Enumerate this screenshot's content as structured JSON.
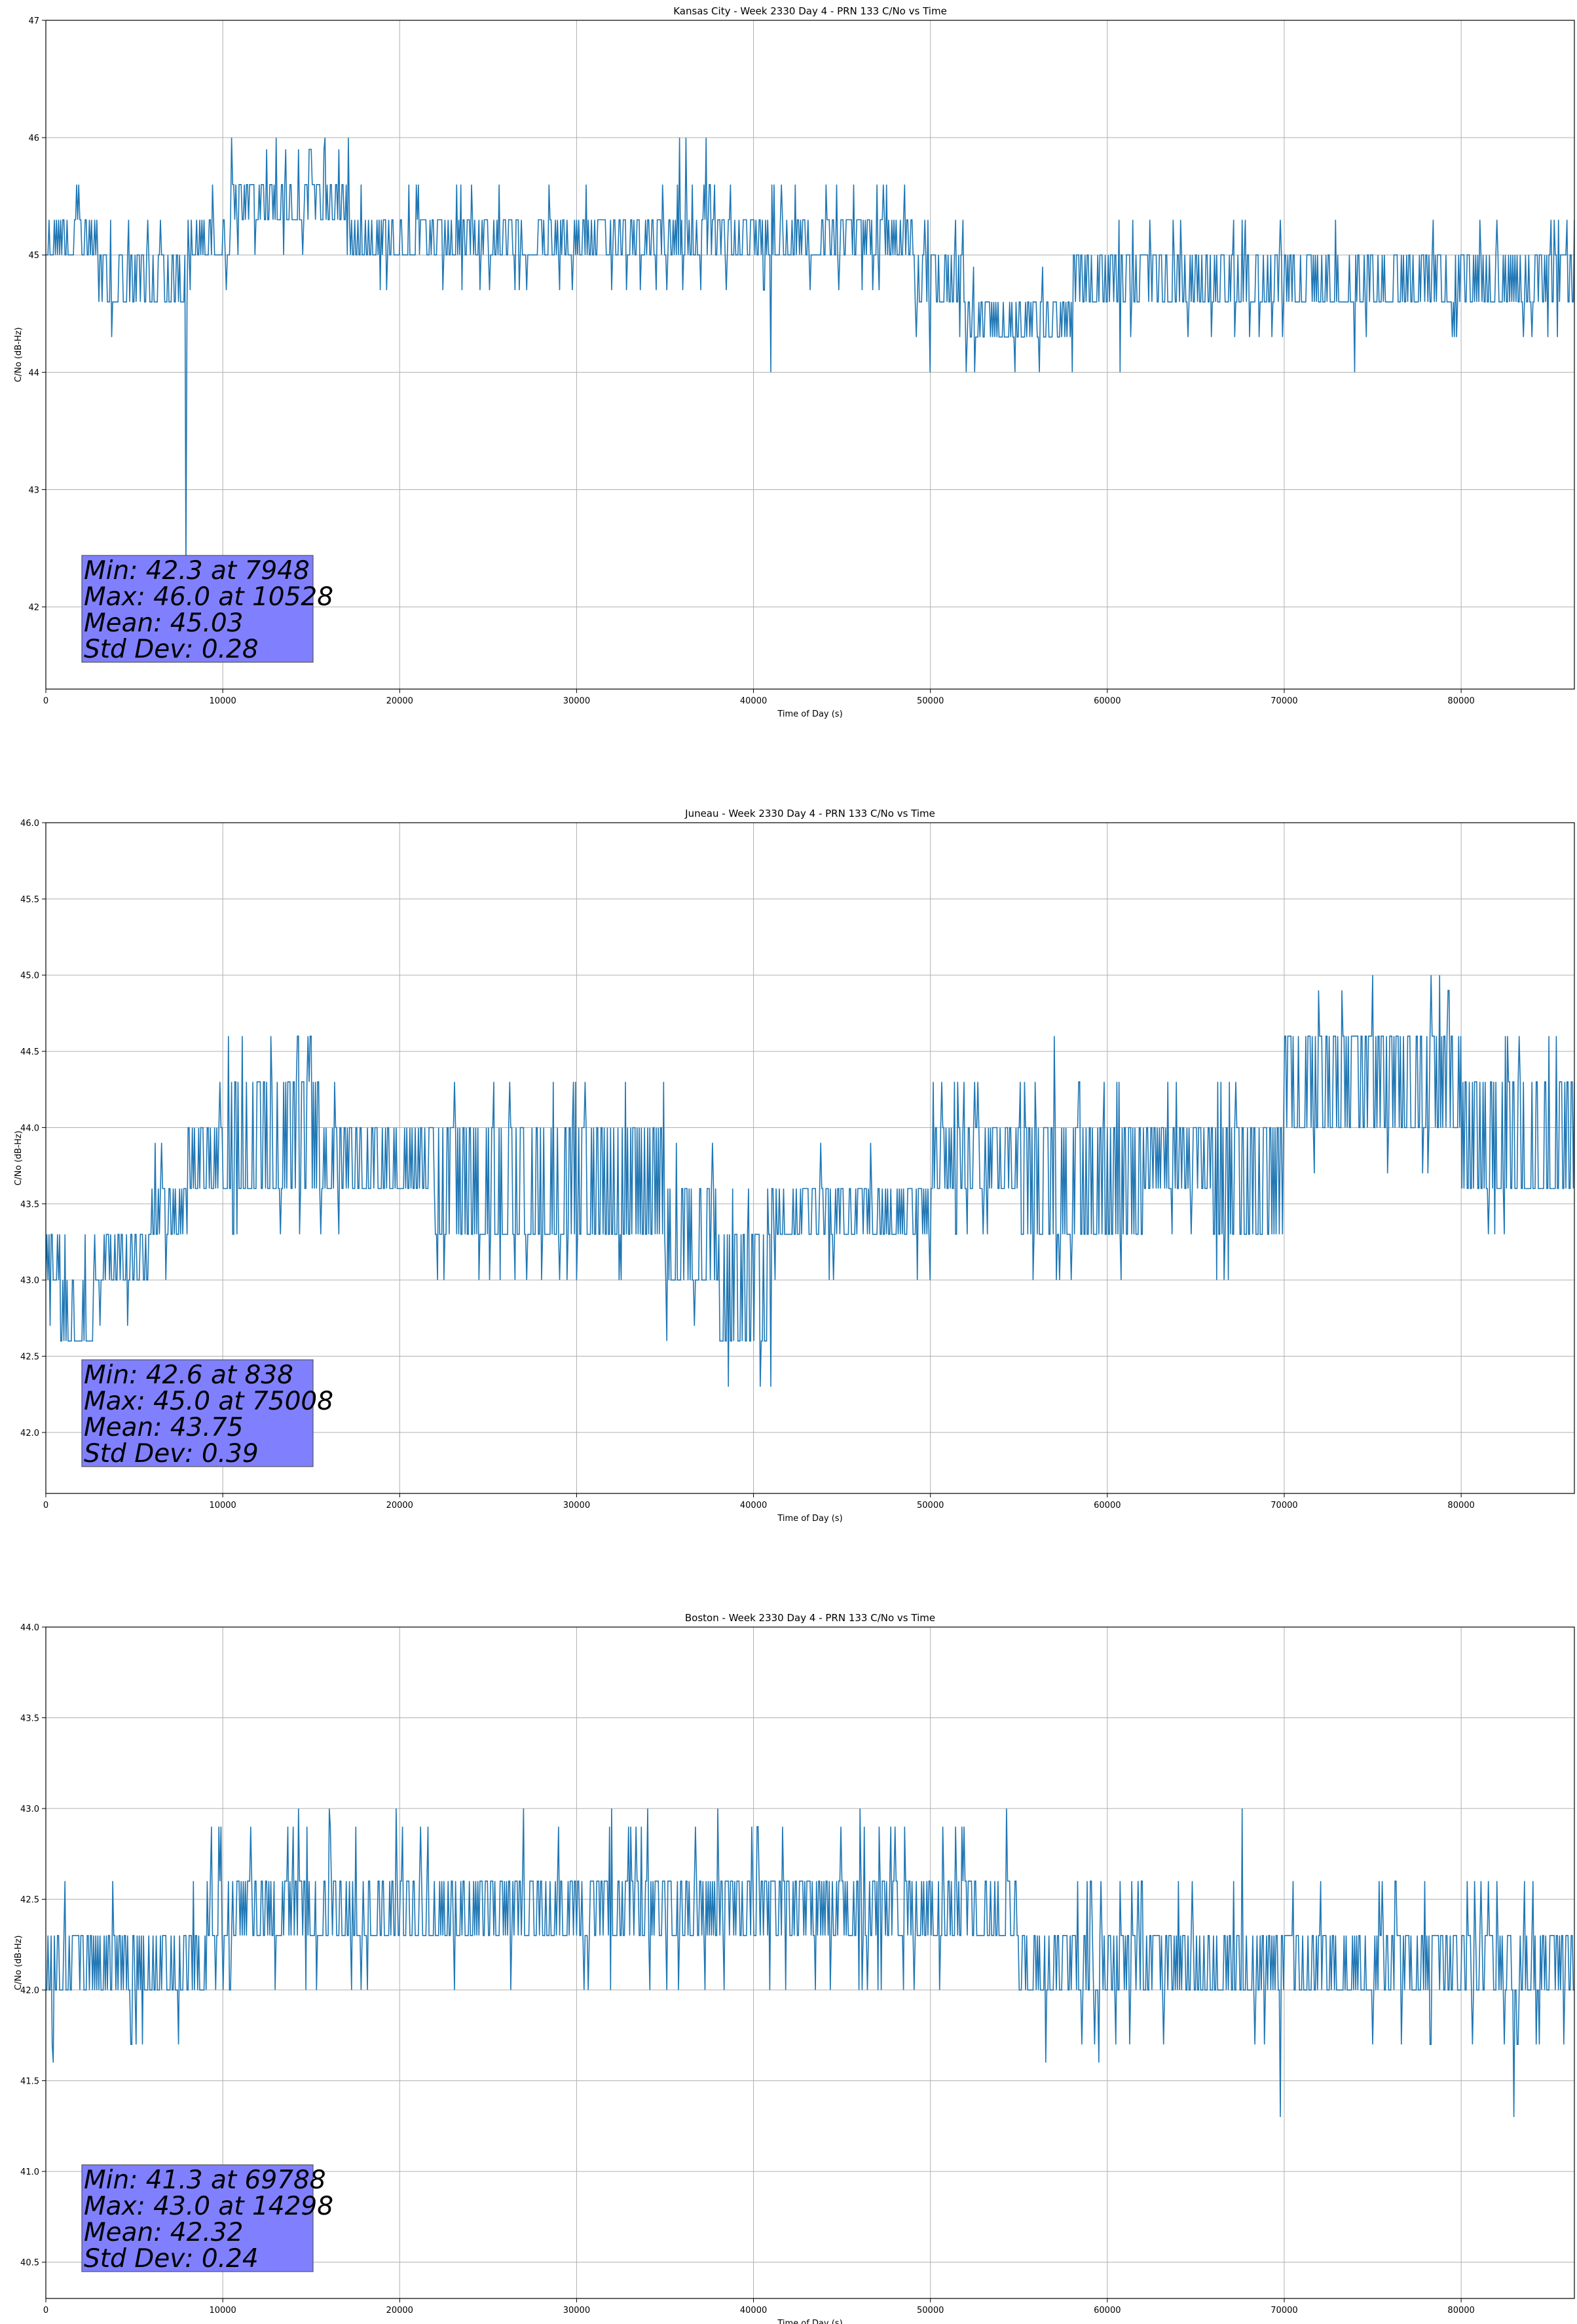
{
  "colors": {
    "series": "#1f77b4",
    "stats_box": "#8080ff",
    "grid": "#b0b0b0"
  },
  "chart_data": [
    {
      "type": "line",
      "title": "Kansas City - Week 2330 Day 4 - PRN 133 C/No vs Time",
      "xlabel": "Time of Day (s)",
      "ylabel": "C/No (dB-Hz)",
      "xlim": [
        0,
        86400
      ],
      "ylim": [
        41.3,
        47.0
      ],
      "xticks": [
        0,
        10000,
        20000,
        30000,
        40000,
        50000,
        60000,
        70000,
        80000
      ],
      "yticks": [
        42,
        43,
        44,
        45,
        46,
        47
      ],
      "ytick_decimals": 0,
      "grid": true,
      "stats": [
        "Min: 42.3 at 7948",
        "Max: 46.0 at 10528",
        "Mean: 45.03",
        "Std Dev: 0.28"
      ],
      "band": {
        "x": [
          0,
          3000,
          8000,
          10500,
          17000,
          26000,
          42000,
          49000,
          52000,
          58000,
          62000,
          70000,
          86400
        ],
        "lo": [
          45.0,
          44.6,
          45.0,
          45.3,
          45.0,
          45.0,
          45.0,
          44.6,
          44.3,
          44.6,
          44.6,
          44.6,
          45.0
        ],
        "hi": [
          45.3,
          45.0,
          45.3,
          45.6,
          45.3,
          45.3,
          45.3,
          45.0,
          44.6,
          45.0,
          45.0,
          45.0,
          45.3
        ]
      },
      "flicker": {
        "up": 0.3,
        "down": 0.4,
        "step": 0.3
      },
      "spikes": [
        {
          "x": 7948,
          "y": 42.3
        },
        {
          "x": 10528,
          "y": 46.0
        },
        {
          "x": 13000,
          "y": 46.0
        },
        {
          "x": 15800,
          "y": 46.0
        },
        {
          "x": 17100,
          "y": 46.0
        },
        {
          "x": 35800,
          "y": 46.0
        },
        {
          "x": 36200,
          "y": 46.0
        },
        {
          "x": 37300,
          "y": 46.0
        },
        {
          "x": 3700,
          "y": 44.3
        },
        {
          "x": 41000,
          "y": 44.0
        },
        {
          "x": 50000,
          "y": 44.0
        },
        {
          "x": 58000,
          "y": 44.0
        },
        {
          "x": 60700,
          "y": 44.0
        },
        {
          "x": 74000,
          "y": 44.0
        },
        {
          "x": 84000,
          "y": 44.3
        }
      ]
    },
    {
      "type": "line",
      "title": "Juneau - Week 2330 Day 4 - PRN 133 C/No vs Time",
      "xlabel": "Time of Day (s)",
      "ylabel": "C/No (dB-Hz)",
      "xlim": [
        0,
        86400
      ],
      "ylim": [
        41.6,
        46.0
      ],
      "xticks": [
        0,
        10000,
        20000,
        30000,
        40000,
        50000,
        60000,
        70000,
        80000
      ],
      "yticks": [
        42.0,
        42.5,
        43.0,
        43.5,
        44.0,
        44.5,
        45.0,
        45.5,
        46.0
      ],
      "ytick_decimals": 1,
      "grid": true,
      "stats": [
        "Min: 42.6 at 838",
        "Max: 45.0 at 75008",
        "Mean: 43.75",
        "Std Dev: 0.39"
      ],
      "band": {
        "x": [
          0,
          800,
          2700,
          6000,
          8000,
          10000,
          15500,
          22000,
          27000,
          35000,
          38000,
          41000,
          50000,
          55000,
          62000,
          66000,
          70000,
          80000,
          86400
        ],
        "lo": [
          43.0,
          42.6,
          43.0,
          43.3,
          43.6,
          43.6,
          43.6,
          43.3,
          43.3,
          43.0,
          42.6,
          43.3,
          43.6,
          43.3,
          43.6,
          43.3,
          44.0,
          43.6,
          43.6
        ],
        "hi": [
          43.3,
          43.0,
          43.3,
          43.6,
          44.0,
          44.3,
          44.0,
          44.0,
          44.0,
          43.6,
          43.3,
          43.6,
          44.0,
          44.0,
          44.0,
          44.0,
          44.6,
          44.3,
          44.3
        ]
      },
      "flicker": {
        "up": 0.3,
        "down": 0.3,
        "step": 0.3
      },
      "spikes": [
        {
          "x": 838,
          "y": 42.6
        },
        {
          "x": 75008,
          "y": 45.0
        },
        {
          "x": 78300,
          "y": 45.0
        },
        {
          "x": 78800,
          "y": 45.0
        },
        {
          "x": 15000,
          "y": 44.6
        },
        {
          "x": 57000,
          "y": 44.6
        },
        {
          "x": 22500,
          "y": 43.0
        },
        {
          "x": 24500,
          "y": 43.0
        },
        {
          "x": 35100,
          "y": 42.6
        },
        {
          "x": 40500,
          "y": 42.6
        },
        {
          "x": 50000,
          "y": 43.0
        }
      ]
    },
    {
      "type": "line",
      "title": "Boston - Week 2330 Day 4 - PRN 133 C/No vs Time",
      "xlabel": "Time of Day (s)",
      "ylabel": "C/No (dB-Hz)",
      "xlim": [
        0,
        86400
      ],
      "ylim": [
        40.3,
        44.0
      ],
      "xticks": [
        0,
        10000,
        20000,
        30000,
        40000,
        50000,
        60000,
        70000,
        80000
      ],
      "yticks": [
        40.5,
        41.0,
        41.5,
        42.0,
        42.5,
        43.0,
        43.5,
        44.0
      ],
      "ytick_decimals": 1,
      "grid": true,
      "stats": [
        "Min: 41.3 at 69788",
        "Max: 43.0 at 14298",
        "Mean: 42.32",
        "Std Dev: 0.24"
      ],
      "band": {
        "x": [
          0,
          2000,
          5000,
          9000,
          16000,
          20000,
          27000,
          37000,
          48000,
          55000,
          62000,
          72000,
          86400
        ],
        "lo": [
          42.0,
          42.0,
          42.0,
          42.3,
          42.3,
          42.3,
          42.3,
          42.3,
          42.3,
          42.0,
          42.0,
          42.0,
          42.0
        ],
        "hi": [
          42.3,
          42.3,
          42.3,
          42.6,
          42.6,
          42.6,
          42.6,
          42.6,
          42.6,
          42.3,
          42.3,
          42.3,
          42.3
        ]
      },
      "flicker": {
        "up": 0.3,
        "down": 0.4,
        "step": 0.3
      },
      "spikes": [
        {
          "x": 14298,
          "y": 43.0
        },
        {
          "x": 16000,
          "y": 43.0
        },
        {
          "x": 19800,
          "y": 43.0
        },
        {
          "x": 27000,
          "y": 43.0
        },
        {
          "x": 32000,
          "y": 43.0
        },
        {
          "x": 34000,
          "y": 43.0
        },
        {
          "x": 38000,
          "y": 43.0
        },
        {
          "x": 46000,
          "y": 43.0
        },
        {
          "x": 54300,
          "y": 43.0
        },
        {
          "x": 67600,
          "y": 43.0
        },
        {
          "x": 69788,
          "y": 41.3
        },
        {
          "x": 83000,
          "y": 41.3
        },
        {
          "x": 400,
          "y": 41.6
        },
        {
          "x": 56500,
          "y": 41.6
        },
        {
          "x": 59500,
          "y": 41.6
        }
      ]
    }
  ]
}
